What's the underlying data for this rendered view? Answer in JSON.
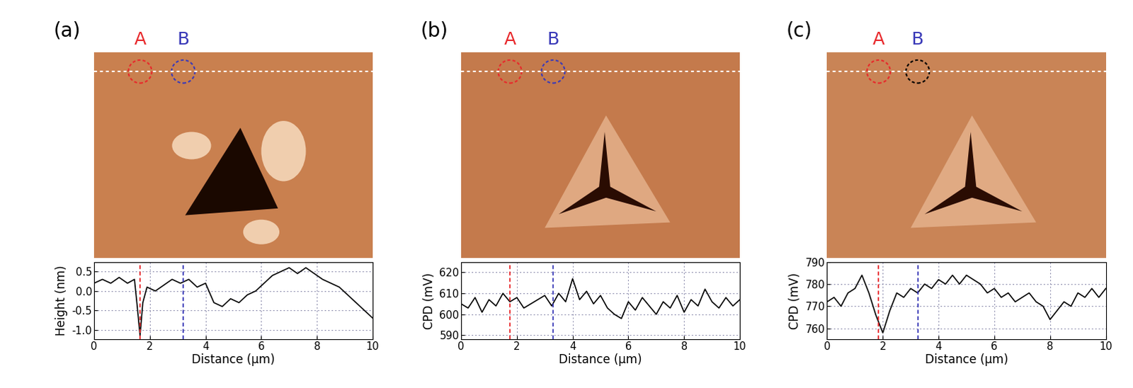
{
  "chart_data": [
    {
      "type": "line",
      "panel": "(a)",
      "xlabel": "Distance (μm)",
      "ylabel": "Height (nm)",
      "xlim": [
        0,
        10
      ],
      "xticks": [
        0,
        2,
        4,
        6,
        8,
        10
      ],
      "ylim": [
        -1.25,
        0.75
      ],
      "yticks": [
        -1.0,
        -0.5,
        0.0,
        0.5
      ],
      "grid": true,
      "color": "#000000",
      "reference_lines": [
        {
          "label": "A",
          "x": 1.65,
          "color": "#e8282b",
          "circle_color": "#e8282b"
        },
        {
          "label": "B",
          "x": 3.2,
          "color": "#3a3ab8",
          "circle_color": "#3a3ab8"
        }
      ],
      "x": [
        0,
        0.3,
        0.6,
        0.9,
        1.2,
        1.45,
        1.55,
        1.65,
        1.75,
        1.9,
        2.2,
        2.5,
        2.8,
        3.1,
        3.4,
        3.7,
        4.0,
        4.3,
        4.6,
        4.9,
        5.2,
        5.5,
        5.8,
        6.1,
        6.4,
        6.7,
        7.0,
        7.3,
        7.6,
        7.9,
        8.2,
        8.5,
        8.8,
        9.1,
        9.4,
        9.7,
        10
      ],
      "values": [
        0.2,
        0.3,
        0.2,
        0.35,
        0.2,
        0.3,
        -0.4,
        -1.15,
        -0.3,
        0.1,
        0.0,
        0.15,
        0.3,
        0.2,
        0.3,
        0.1,
        0.2,
        -0.3,
        -0.4,
        -0.2,
        -0.3,
        -0.1,
        0.0,
        0.2,
        0.4,
        0.5,
        0.6,
        0.45,
        0.6,
        0.45,
        0.3,
        0.2,
        0.1,
        -0.1,
        -0.3,
        -0.5,
        -0.7
      ]
    },
    {
      "type": "line",
      "panel": "(b)",
      "xlabel": "Distance (μm)",
      "ylabel": "CPD (mV)",
      "xlim": [
        0,
        10
      ],
      "xticks": [
        0,
        2,
        4,
        6,
        8,
        10
      ],
      "ylim": [
        588,
        625
      ],
      "yticks": [
        590,
        600,
        610,
        620
      ],
      "grid": true,
      "color": "#000000",
      "reference_lines": [
        {
          "label": "A",
          "x": 1.75,
          "color": "#e8282b",
          "circle_color": "#e8282b"
        },
        {
          "label": "B",
          "x": 3.3,
          "color": "#3a3ab8",
          "circle_color": "#3a3ab8"
        }
      ],
      "x": [
        0,
        0.25,
        0.5,
        0.75,
        1.0,
        1.25,
        1.5,
        1.75,
        2.0,
        2.25,
        2.5,
        2.75,
        3.0,
        3.25,
        3.5,
        3.75,
        4.0,
        4.25,
        4.5,
        4.75,
        5.0,
        5.25,
        5.5,
        5.75,
        6.0,
        6.25,
        6.5,
        6.75,
        7.0,
        7.25,
        7.5,
        7.75,
        8.0,
        8.25,
        8.5,
        8.75,
        9.0,
        9.25,
        9.5,
        9.75,
        10
      ],
      "values": [
        605,
        603,
        608,
        601,
        607,
        604,
        610,
        606,
        608,
        603,
        605,
        607,
        609,
        604,
        610,
        606,
        617,
        607,
        611,
        605,
        609,
        603,
        600,
        598,
        606,
        602,
        608,
        604,
        600,
        606,
        603,
        609,
        601,
        607,
        604,
        612,
        606,
        603,
        608,
        604,
        607
      ]
    },
    {
      "type": "line",
      "panel": "(c)",
      "xlabel": "Distance (μm)",
      "ylabel": "CPD (mV)",
      "xlim": [
        0,
        10
      ],
      "xticks": [
        0,
        2,
        4,
        6,
        8,
        10
      ],
      "ylim": [
        755,
        790
      ],
      "yticks": [
        760,
        770,
        780,
        790
      ],
      "grid": true,
      "color": "#000000",
      "reference_lines": [
        {
          "label": "A",
          "x": 1.85,
          "color": "#e8282b",
          "circle_color": "#e8282b"
        },
        {
          "label": "B",
          "x": 3.25,
          "color": "#3a3ab8",
          "circle_color": "#000000"
        }
      ],
      "x": [
        0,
        0.25,
        0.5,
        0.75,
        1.0,
        1.25,
        1.5,
        1.75,
        2.0,
        2.25,
        2.5,
        2.75,
        3.0,
        3.25,
        3.5,
        3.75,
        4.0,
        4.25,
        4.5,
        4.75,
        5.0,
        5.25,
        5.5,
        5.75,
        6.0,
        6.25,
        6.5,
        6.75,
        7.0,
        7.25,
        7.5,
        7.75,
        8.0,
        8.25,
        8.5,
        8.75,
        9.0,
        9.25,
        9.5,
        9.75,
        10
      ],
      "values": [
        772,
        774,
        770,
        776,
        778,
        784,
        776,
        766,
        758,
        768,
        776,
        774,
        778,
        776,
        780,
        778,
        782,
        780,
        784,
        780,
        784,
        782,
        780,
        776,
        778,
        774,
        776,
        772,
        774,
        776,
        772,
        770,
        764,
        768,
        772,
        770,
        776,
        774,
        778,
        774,
        778
      ]
    }
  ]
}
